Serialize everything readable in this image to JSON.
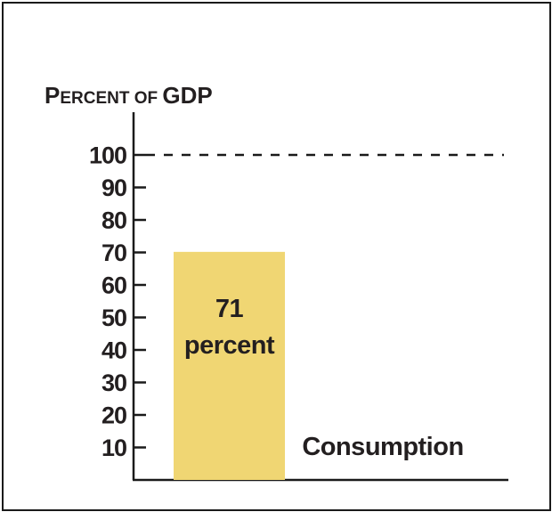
{
  "chart_data": {
    "type": "bar",
    "ylabel": "Percent of GDP",
    "ylim": [
      0,
      100
    ],
    "yticks": [
      10,
      20,
      30,
      40,
      50,
      60,
      70,
      80,
      90,
      100
    ],
    "reference_line": {
      "value": 100,
      "style": "dashed"
    },
    "categories": [
      "Consumption"
    ],
    "values": [
      71
    ],
    "bar_label_value": "71",
    "bar_label_unit": "percent",
    "bar_color": "#f0d673",
    "grid": false
  }
}
